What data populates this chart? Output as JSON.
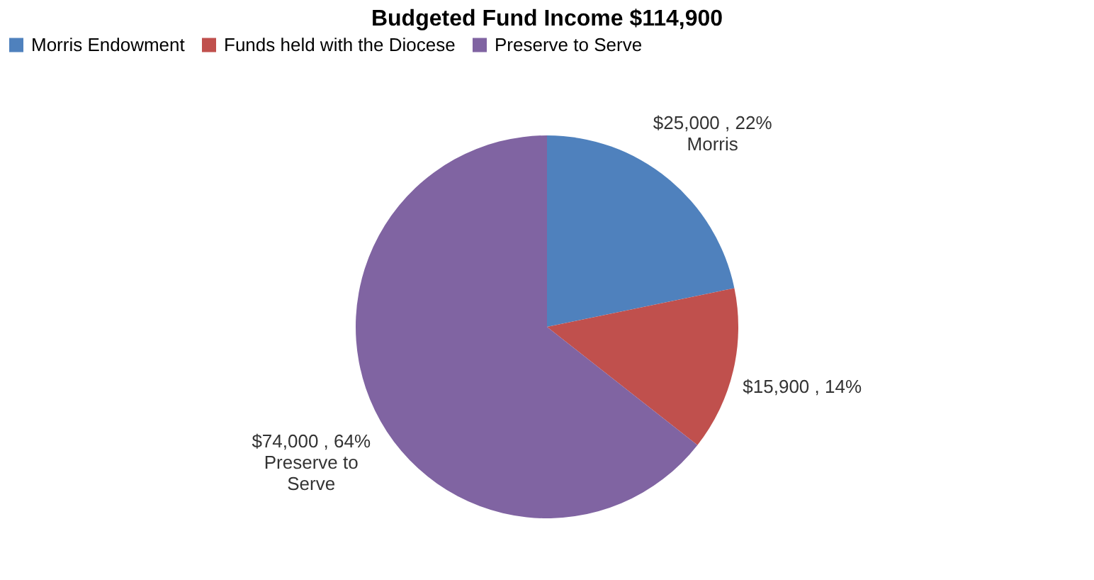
{
  "chart_data": {
    "type": "pie",
    "title": "Budgeted Fund Income $114,900",
    "categories": [
      "Morris Endowment",
      "Funds held with the Diocese",
      "Preserve to Serve"
    ],
    "values": [
      25000,
      15900,
      74000
    ],
    "colors": [
      "#4f81bd",
      "#c0504d",
      "#8064a2"
    ],
    "value_labels": [
      "$25,000 , 22%\nMorris",
      "$15,900 , 14%",
      "$74,000 , 64%\nPreserve to\nServe"
    ],
    "legend": "top"
  }
}
